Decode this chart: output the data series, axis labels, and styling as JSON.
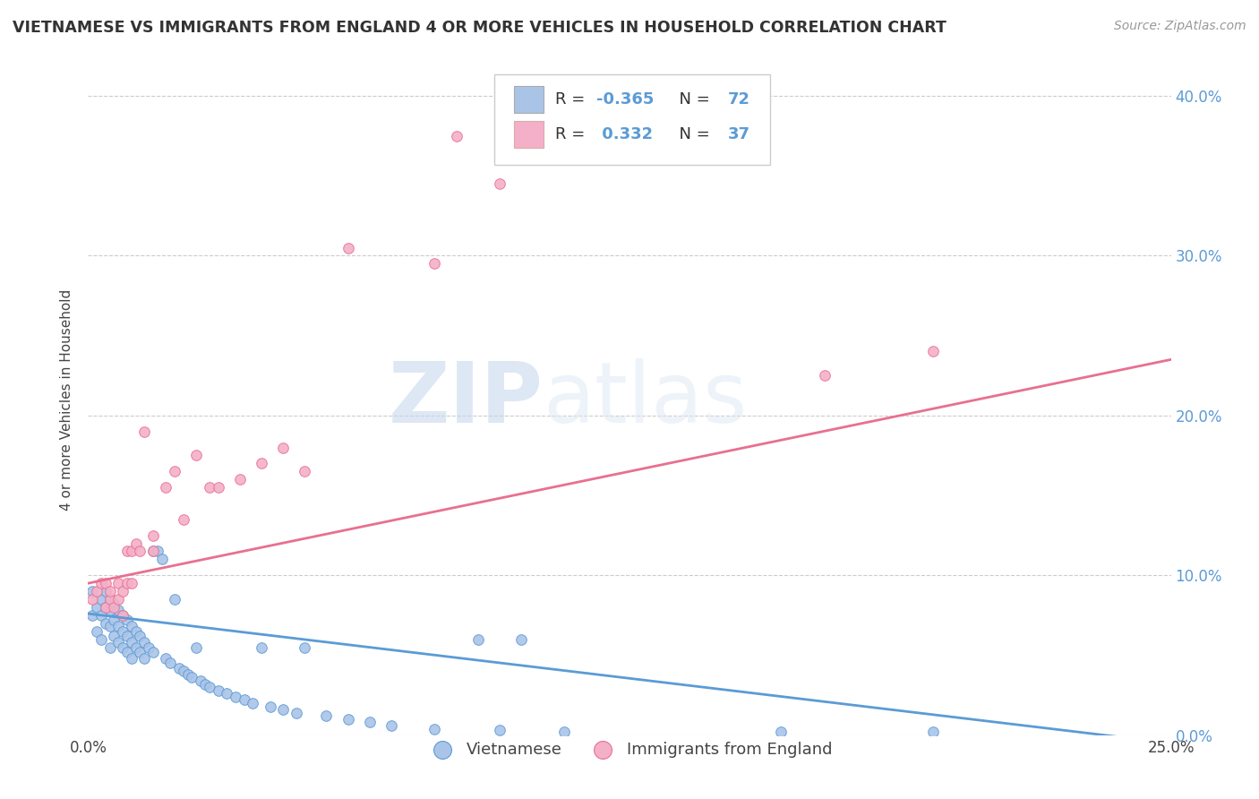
{
  "title": "VIETNAMESE VS IMMIGRANTS FROM ENGLAND 4 OR MORE VEHICLES IN HOUSEHOLD CORRELATION CHART",
  "source": "Source: ZipAtlas.com",
  "ylabel": "4 or more Vehicles in Household",
  "xlim": [
    0.0,
    0.25
  ],
  "ylim": [
    0.0,
    0.42
  ],
  "xticks": [
    0.0,
    0.25
  ],
  "xtick_labels": [
    "0.0%",
    "25.0%"
  ],
  "yticks": [
    0.0,
    0.1,
    0.2,
    0.3,
    0.4
  ],
  "ytick_labels": [
    "0.0%",
    "10.0%",
    "20.0%",
    "30.0%",
    "40.0%"
  ],
  "legend_R1": "-0.365",
  "legend_N1": "72",
  "legend_R2": "0.332",
  "legend_N2": "37",
  "color_blue": "#aac4e8",
  "color_pink": "#f4b0c8",
  "line_color_blue": "#5b9bd5",
  "line_color_pink": "#e87090",
  "watermark_zip": "ZIP",
  "watermark_atlas": "atlas",
  "blue_line_x0": 0.0,
  "blue_line_y0": 0.076,
  "blue_line_x1": 0.25,
  "blue_line_y1": -0.005,
  "pink_line_x0": 0.0,
  "pink_line_y0": 0.095,
  "pink_line_x1": 0.25,
  "pink_line_y1": 0.235,
  "scatter_blue_x": [
    0.001,
    0.001,
    0.002,
    0.002,
    0.003,
    0.003,
    0.003,
    0.004,
    0.004,
    0.004,
    0.005,
    0.005,
    0.005,
    0.005,
    0.006,
    0.006,
    0.006,
    0.007,
    0.007,
    0.007,
    0.008,
    0.008,
    0.008,
    0.009,
    0.009,
    0.009,
    0.01,
    0.01,
    0.01,
    0.011,
    0.011,
    0.012,
    0.012,
    0.013,
    0.013,
    0.014,
    0.015,
    0.015,
    0.016,
    0.017,
    0.018,
    0.019,
    0.02,
    0.021,
    0.022,
    0.023,
    0.024,
    0.025,
    0.026,
    0.027,
    0.028,
    0.03,
    0.032,
    0.034,
    0.036,
    0.038,
    0.04,
    0.042,
    0.045,
    0.048,
    0.05,
    0.055,
    0.06,
    0.065,
    0.07,
    0.08,
    0.09,
    0.095,
    0.1,
    0.11,
    0.16,
    0.195
  ],
  "scatter_blue_y": [
    0.075,
    0.09,
    0.08,
    0.065,
    0.085,
    0.075,
    0.06,
    0.09,
    0.08,
    0.07,
    0.085,
    0.078,
    0.068,
    0.055,
    0.082,
    0.072,
    0.062,
    0.078,
    0.068,
    0.058,
    0.075,
    0.065,
    0.055,
    0.072,
    0.062,
    0.052,
    0.068,
    0.058,
    0.048,
    0.065,
    0.055,
    0.062,
    0.052,
    0.058,
    0.048,
    0.055,
    0.115,
    0.052,
    0.115,
    0.11,
    0.048,
    0.045,
    0.085,
    0.042,
    0.04,
    0.038,
    0.036,
    0.055,
    0.034,
    0.032,
    0.03,
    0.028,
    0.026,
    0.024,
    0.022,
    0.02,
    0.055,
    0.018,
    0.016,
    0.014,
    0.055,
    0.012,
    0.01,
    0.008,
    0.006,
    0.004,
    0.06,
    0.003,
    0.06,
    0.002,
    0.002,
    0.002
  ],
  "scatter_pink_x": [
    0.001,
    0.002,
    0.003,
    0.004,
    0.004,
    0.005,
    0.005,
    0.006,
    0.007,
    0.007,
    0.008,
    0.008,
    0.009,
    0.009,
    0.01,
    0.01,
    0.011,
    0.012,
    0.013,
    0.015,
    0.015,
    0.018,
    0.02,
    0.022,
    0.025,
    0.028,
    0.03,
    0.035,
    0.04,
    0.045,
    0.05,
    0.06,
    0.08,
    0.085,
    0.095,
    0.17,
    0.195
  ],
  "scatter_pink_y": [
    0.085,
    0.09,
    0.095,
    0.095,
    0.08,
    0.085,
    0.09,
    0.08,
    0.095,
    0.085,
    0.09,
    0.075,
    0.115,
    0.095,
    0.115,
    0.095,
    0.12,
    0.115,
    0.19,
    0.125,
    0.115,
    0.155,
    0.165,
    0.135,
    0.175,
    0.155,
    0.155,
    0.16,
    0.17,
    0.18,
    0.165,
    0.305,
    0.295,
    0.375,
    0.345,
    0.225,
    0.24
  ]
}
